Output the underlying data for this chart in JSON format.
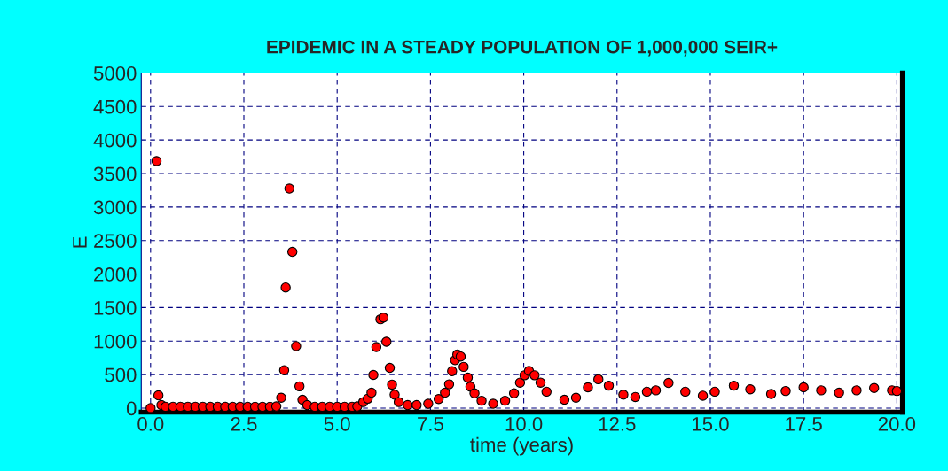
{
  "chart_data": {
    "type": "scatter",
    "title": "EPIDEMIC IN A STEADY POPULATION OF 1,000,000 SEIR+",
    "xlabel": "time (years)",
    "ylabel": "E",
    "series": [
      {
        "color": "#ff0000",
        "x": [
          0,
          0.16,
          0.21,
          0.29,
          0.4,
          0.6,
          0.8,
          1.0,
          1.2,
          1.4,
          1.6,
          1.8,
          2.0,
          2.2,
          2.4,
          2.6,
          2.8,
          3.0,
          3.2,
          3.37,
          3.5,
          3.58,
          3.62,
          3.72,
          3.8,
          3.9,
          3.99,
          4.07,
          4.2,
          4.4,
          4.6,
          4.8,
          5.0,
          5.2,
          5.4,
          5.54,
          5.7,
          5.82,
          5.92,
          5.97,
          6.05,
          6.16,
          6.24,
          6.32,
          6.41,
          6.47,
          6.54,
          6.65,
          6.89,
          7.13,
          7.44,
          7.72,
          7.89,
          8.0,
          8.08,
          8.16,
          8.22,
          8.31,
          8.39,
          8.5,
          8.57,
          8.68,
          8.87,
          9.18,
          9.5,
          9.74,
          9.9,
          10.02,
          10.14,
          10.29,
          10.45,
          10.61,
          11.09,
          11.4,
          11.72,
          12.0,
          12.28,
          12.67,
          12.99,
          13.3,
          13.54,
          13.88,
          14.33,
          14.8,
          15.12,
          15.63,
          16.07,
          16.63,
          17.02,
          17.5,
          17.97,
          18.45,
          18.92,
          19.39,
          19.87,
          20.0
        ],
        "values": [
          0,
          3685,
          190,
          45,
          20,
          20,
          20,
          20,
          20,
          20,
          20,
          20,
          20,
          20,
          20,
          20,
          20,
          20,
          20,
          25,
          155,
          565,
          1800,
          3275,
          2330,
          925,
          325,
          125,
          45,
          20,
          20,
          20,
          20,
          20,
          20,
          25,
          90,
          140,
          230,
          495,
          910,
          1325,
          1350,
          990,
          600,
          350,
          200,
          90,
          45,
          45,
          65,
          135,
          230,
          355,
          550,
          715,
          800,
          770,
          615,
          455,
          320,
          220,
          110,
          65,
          110,
          220,
          380,
          490,
          555,
          490,
          380,
          245,
          125,
          155,
          310,
          430,
          335,
          200,
          165,
          245,
          265,
          375,
          245,
          185,
          245,
          335,
          280,
          210,
          255,
          310,
          265,
          230,
          265,
          300,
          265,
          255
        ]
      }
    ],
    "xlim": [
      -0.25,
      20.15
    ],
    "ylim": [
      -60,
      5000
    ],
    "xticks": [
      {
        "value": 0,
        "label": "0.0"
      },
      {
        "value": 2.5,
        "label": "2.5"
      },
      {
        "value": 5,
        "label": "5.0"
      },
      {
        "value": 7.5,
        "label": "7.5"
      },
      {
        "value": 10,
        "label": "10.0"
      },
      {
        "value": 12.5,
        "label": "12.5"
      },
      {
        "value": 15,
        "label": "15.0"
      },
      {
        "value": 17.5,
        "label": "17.5"
      },
      {
        "value": 20,
        "label": "20.0"
      }
    ],
    "yticks": [
      0,
      500,
      1000,
      1500,
      2000,
      2500,
      3000,
      3500,
      4000,
      4500,
      5000
    ],
    "grid": true,
    "marker": "circle",
    "legend": false
  }
}
